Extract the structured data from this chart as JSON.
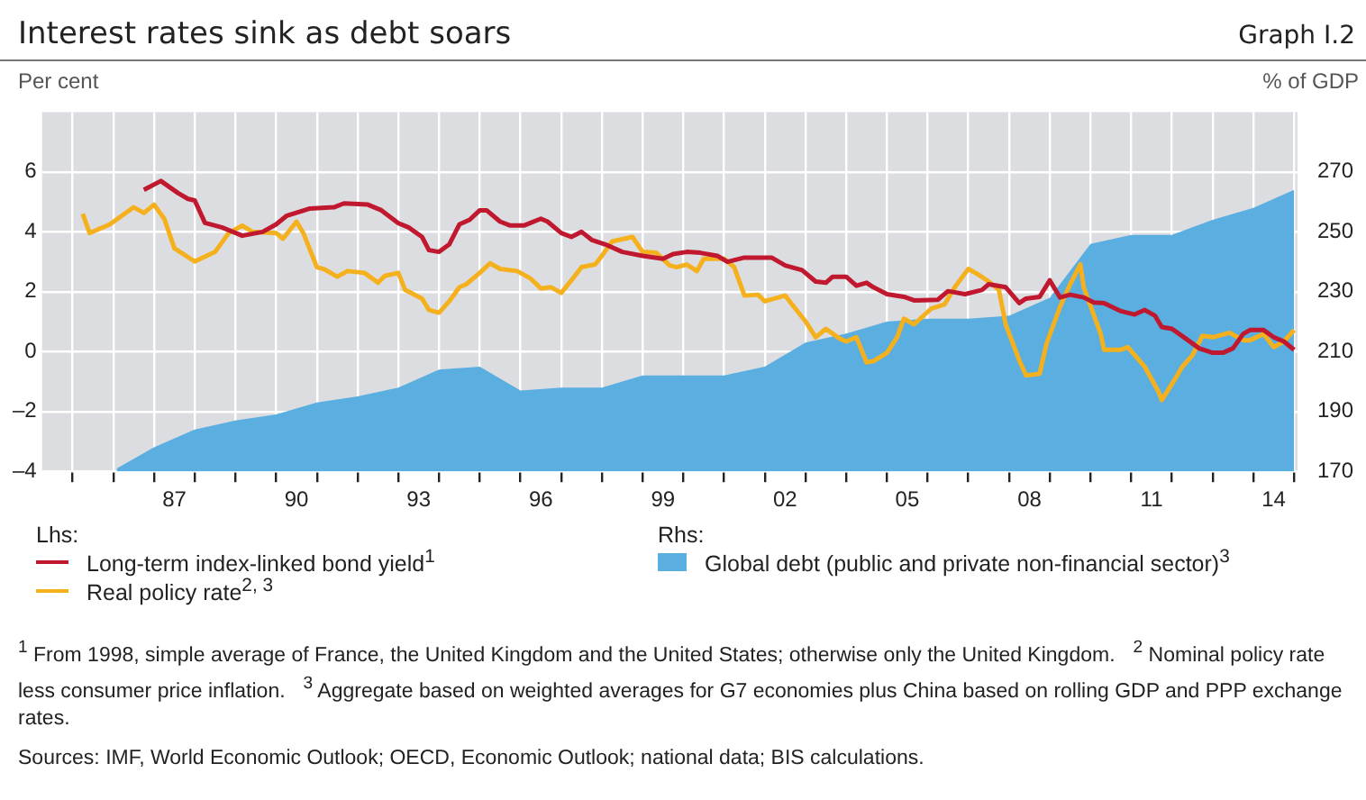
{
  "chart_data": {
    "type": "line",
    "title": "Interest rates sink as debt soars",
    "subtitle": "Graph I.2",
    "ylabel": "Per cent",
    "y2label": "% of GDP",
    "xlim": [
      "1984-04",
      "2015-02"
    ],
    "xticks": [
      {
        "value": "1985",
        "label": null
      },
      {
        "value": "1986",
        "label": null
      },
      {
        "value": "1987",
        "label": null
      },
      {
        "value": "1987-07",
        "label": "87"
      },
      {
        "value": "1988",
        "label": null
      },
      {
        "value": "1989",
        "label": null
      },
      {
        "value": "1990",
        "label": null
      },
      {
        "value": "1990-07",
        "label": "90"
      },
      {
        "value": "1991",
        "label": null
      },
      {
        "value": "1992",
        "label": null
      },
      {
        "value": "1993",
        "label": null
      },
      {
        "value": "1993-07",
        "label": "93"
      },
      {
        "value": "1994",
        "label": null
      },
      {
        "value": "1995",
        "label": null
      },
      {
        "value": "1996",
        "label": null
      },
      {
        "value": "1996-07",
        "label": "96"
      },
      {
        "value": "1997",
        "label": null
      },
      {
        "value": "1998",
        "label": null
      },
      {
        "value": "1999",
        "label": null
      },
      {
        "value": "1999-07",
        "label": "99"
      },
      {
        "value": "2000",
        "label": null
      },
      {
        "value": "2001",
        "label": null
      },
      {
        "value": "2002",
        "label": null
      },
      {
        "value": "2002-07",
        "label": "02"
      },
      {
        "value": "2003",
        "label": null
      },
      {
        "value": "2004",
        "label": null
      },
      {
        "value": "2005",
        "label": null
      },
      {
        "value": "2005-07",
        "label": "05"
      },
      {
        "value": "2006",
        "label": null
      },
      {
        "value": "2007",
        "label": null
      },
      {
        "value": "2008",
        "label": null
      },
      {
        "value": "2008-07",
        "label": "08"
      },
      {
        "value": "2009",
        "label": null
      },
      {
        "value": "2010",
        "label": null
      },
      {
        "value": "2011",
        "label": null
      },
      {
        "value": "2011-07",
        "label": "11"
      },
      {
        "value": "2012",
        "label": null
      },
      {
        "value": "2013",
        "label": null
      },
      {
        "value": "2014",
        "label": null
      },
      {
        "value": "2014-07",
        "label": "14"
      },
      {
        "value": "2015",
        "label": null
      }
    ],
    "ylim": [
      -4,
      8
    ],
    "yticks": [
      {
        "value": -4,
        "label": "–4"
      },
      {
        "value": -2,
        "label": "–2"
      },
      0,
      2,
      4,
      6
    ],
    "y2lim": [
      170,
      290
    ],
    "y2ticks": [
      170,
      190,
      210,
      230,
      250,
      270
    ],
    "grid": true,
    "legend": "bottom",
    "series": [
      {
        "name": "Global debt (public and private non-financial sector)$^{3}$",
        "type": "area",
        "axis": "y2",
        "color": "#5aaee0",
        "x": [
          "1986-02",
          "1987-01",
          "1988-01",
          "1989-01",
          "1990-01",
          "1991-01",
          "1992-01",
          "1993-01",
          "1994-01",
          "1995-01",
          "1996-01",
          "1997-01",
          "1998-01",
          "1999-01",
          "2000-01",
          "2001-01",
          "2002-01",
          "2003-01",
          "2004-01",
          "2005-01",
          "2006-01",
          "2007-01",
          "2008-01",
          "2009-01",
          "2010-01",
          "2011-01",
          "2012-01",
          "2013-01",
          "2014-01",
          "2015-01"
        ],
        "values": [
          171,
          178,
          184,
          187,
          189,
          193,
          195,
          198,
          204,
          205,
          197,
          198,
          198,
          202,
          202,
          202,
          205,
          213,
          216,
          220,
          221,
          221,
          222,
          228,
          246,
          249,
          249,
          254,
          258,
          264
        ]
      },
      {
        "name": "Long-term index-linked bond yield$^{1}$",
        "type": "line",
        "color": "#c0182f",
        "x": [
          "1986-10",
          "1987-03",
          "1987-08",
          "1987-11",
          "1988-01",
          "1988-04",
          "1988-09",
          "1989-03",
          "1989-09",
          "1990-01",
          "1990-04",
          "1990-11",
          "1991-06",
          "1991-09",
          "1992-04",
          "1992-08",
          "1993-01",
          "1993-04",
          "1993-08",
          "1993-10",
          "1994-01",
          "1994-04",
          "1994-07",
          "1994-10",
          "1995-01",
          "1995-03",
          "1995-07",
          "1995-10",
          "1996-02",
          "1996-07",
          "1996-09",
          "1997-01",
          "1997-04",
          "1997-07",
          "1997-10",
          "1998-02",
          "1998-07",
          "1999-01",
          "1999-07",
          "1999-10",
          "2000-02",
          "2000-06",
          "2000-11",
          "2001-02",
          "2001-07",
          "2002-03",
          "2002-07",
          "2002-12",
          "2003-04",
          "2003-07",
          "2003-09",
          "2004-01",
          "2004-04",
          "2004-07",
          "2004-09",
          "2005-01",
          "2005-06",
          "2005-09",
          "2006-04",
          "2006-07",
          "2006-12",
          "2007-05",
          "2007-07",
          "2007-12",
          "2008-04",
          "2008-06",
          "2008-10",
          "2009-01",
          "2009-04",
          "2009-07",
          "2009-11",
          "2010-02",
          "2010-05",
          "2010-10",
          "2011-02",
          "2011-05",
          "2011-08",
          "2011-10",
          "2012-01",
          "2012-05",
          "2012-09",
          "2013-01",
          "2013-04",
          "2013-07",
          "2013-10",
          "2013-12",
          "2014-04",
          "2014-07",
          "2014-10",
          "2015-01"
        ],
        "values": [
          5.4,
          5.7,
          5.3,
          5.1,
          5.05,
          4.3,
          4.15,
          3.87,
          4,
          4.25,
          4.53,
          4.78,
          4.82,
          4.95,
          4.91,
          4.72,
          4.29,
          4.15,
          3.83,
          3.39,
          3.33,
          3.58,
          4.25,
          4.4,
          4.72,
          4.72,
          4.34,
          4.21,
          4.21,
          4.44,
          4.34,
          3.96,
          3.83,
          4,
          3.73,
          3.58,
          3.33,
          3.2,
          3.1,
          3.26,
          3.33,
          3.3,
          3.2,
          3,
          3.14,
          3.14,
          2.88,
          2.72,
          2.34,
          2.3,
          2.5,
          2.5,
          2.2,
          2.3,
          2.15,
          1.92,
          1.83,
          1.71,
          1.73,
          2.02,
          1.92,
          2.06,
          2.25,
          2.15,
          1.62,
          1.77,
          1.83,
          2.38,
          1.81,
          1.9,
          1.81,
          1.64,
          1.62,
          1.35,
          1.24,
          1.39,
          1.2,
          0.82,
          0.76,
          0.44,
          0.11,
          -0.04,
          -0.04,
          0.11,
          0.59,
          0.72,
          0.72,
          0.48,
          0.34,
          0.06
        ]
      },
      {
        "name": "Real policy rate$^{2, 3}$",
        "type": "line",
        "color": "#f5b11d",
        "x": [
          "1985-04",
          "1985-06",
          "1985-12",
          "1986-07",
          "1986-10",
          "1987-01",
          "1987-04",
          "1987-07",
          "1988-01",
          "1988-07",
          "1988-11",
          "1989-03",
          "1989-06",
          "1990-01",
          "1990-03",
          "1990-07",
          "1990-09",
          "1991-01",
          "1991-03",
          "1991-07",
          "1991-10",
          "1992-03",
          "1992-07",
          "1992-09",
          "1993-01",
          "1993-03",
          "1993-08",
          "1993-10",
          "1994-01",
          "1994-04",
          "1994-07",
          "1994-09",
          "1995-01",
          "1995-04",
          "1995-07",
          "1995-12",
          "1996-04",
          "1996-07",
          "1996-10",
          "1997-01",
          "1997-04",
          "1997-07",
          "1997-11",
          "1998-01",
          "1998-04",
          "1998-10",
          "1999-01",
          "1999-05",
          "1999-09",
          "1999-11",
          "2000-02",
          "2000-05",
          "2000-07",
          "2001-01",
          "2001-04",
          "2001-07",
          "2001-11",
          "2002-01",
          "2002-07",
          "2002-09",
          "2003-01",
          "2003-04",
          "2003-07",
          "2003-11",
          "2004-01",
          "2004-04",
          "2004-07",
          "2004-09",
          "2005-01",
          "2005-04",
          "2005-06",
          "2005-09",
          "2006-02",
          "2006-06",
          "2006-09",
          "2007-01",
          "2007-04",
          "2007-07",
          "2007-10",
          "2007-12",
          "2008-04",
          "2008-06",
          "2008-10",
          "2008-12",
          "2009-04",
          "2009-07",
          "2009-10",
          "2009-11",
          "2010-04",
          "2010-05",
          "2010-10",
          "2010-12",
          "2011-05",
          "2011-09",
          "2011-10",
          "2012-02",
          "2012-04",
          "2012-07",
          "2012-10",
          "2013-01",
          "2013-06",
          "2013-10",
          "2013-12",
          "2014-04",
          "2014-07",
          "2014-10",
          "2015-01"
        ],
        "values": [
          4.6,
          3.96,
          4.25,
          4.82,
          4.63,
          4.91,
          4.44,
          3.45,
          3.01,
          3.33,
          3.96,
          4.21,
          4,
          3.96,
          3.77,
          4.34,
          3.96,
          2.82,
          2.76,
          2.5,
          2.69,
          2.63,
          2.3,
          2.53,
          2.63,
          2.06,
          1.77,
          1.39,
          1.3,
          1.68,
          2.15,
          2.25,
          2.63,
          2.95,
          2.76,
          2.69,
          2.44,
          2.11,
          2.15,
          1.96,
          2.38,
          2.82,
          2.91,
          3.2,
          3.68,
          3.83,
          3.33,
          3.3,
          2.88,
          2.82,
          2.91,
          2.69,
          3.1,
          3.1,
          2.82,
          1.87,
          1.9,
          1.68,
          1.87,
          1.58,
          1.01,
          0.48,
          0.76,
          0.44,
          0.34,
          0.48,
          -0.36,
          -0.32,
          -0.04,
          0.48,
          1.1,
          0.91,
          1.43,
          1.58,
          2.15,
          2.76,
          2.57,
          2.34,
          2.06,
          0.91,
          -0.29,
          -0.8,
          -0.74,
          0.25,
          1.49,
          2.25,
          2.91,
          2.15,
          0.59,
          0.06,
          0.06,
          0.15,
          -0.51,
          -1.33,
          -1.62,
          -0.9,
          -0.51,
          -0.13,
          0.53,
          0.48,
          0.63,
          0.38,
          0.38,
          0.59,
          0.15,
          0.34,
          0.72
        ]
      }
    ],
    "annotations": [
      "Lhs:",
      "Rhs:",
      "$^{1}$ From 1998, simple average of France, the United Kingdom and the United States; otherwise only the United Kingdom.",
      "$^{2}$ Nominal policy rate less consumer price inflation.",
      "$^{3}$ Aggregate based on weighted averages for G7 economies plus China based on rolling GDP and PPP exchange rates.",
      "Sources: IMF, World Economic Outlook; OECD, Economic Outlook; national data; BIS calculations."
    ]
  }
}
